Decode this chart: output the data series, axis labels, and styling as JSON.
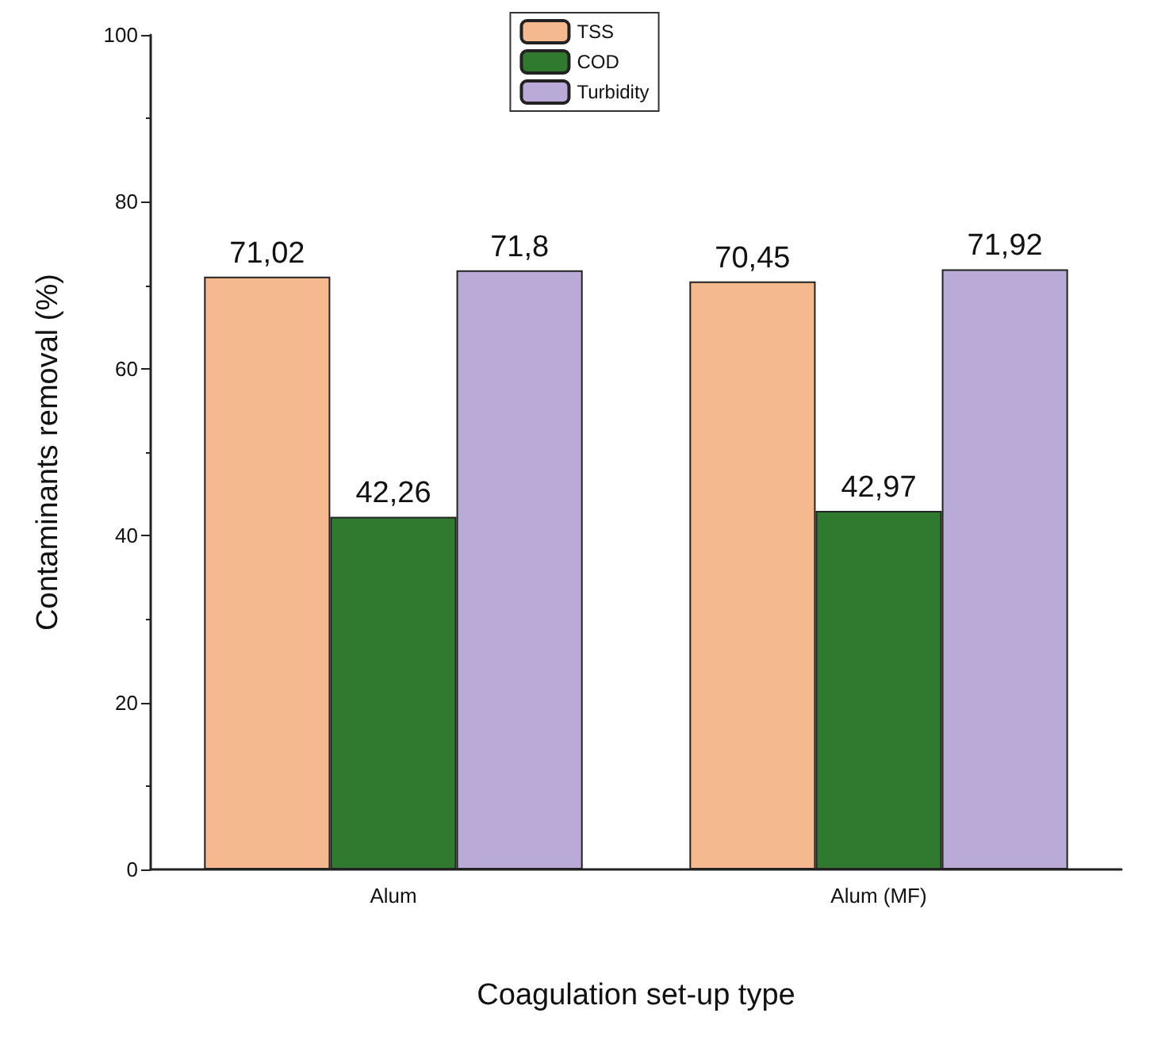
{
  "chart_data": {
    "type": "bar",
    "xlabel": "Coagulation set-up type",
    "ylabel": "Contaminants removal (%)",
    "categories": [
      "Alum",
      "Alum (MF)"
    ],
    "series": [
      {
        "name": "TSS",
        "color": "#f4b98f",
        "values": [
          71.02,
          70.45
        ],
        "value_labels": [
          "71,02",
          "70,45"
        ]
      },
      {
        "name": "COD",
        "color": "#2f7a2f",
        "values": [
          42.26,
          42.97
        ],
        "value_labels": [
          "42,26",
          "42,97"
        ]
      },
      {
        "name": "Turbidity",
        "color": "#b9aad8",
        "values": [
          71.8,
          71.92
        ],
        "value_labels": [
          "71,8",
          "71,92"
        ]
      }
    ],
    "ylim": [
      0,
      100
    ],
    "yticks": [
      0,
      20,
      40,
      60,
      80,
      100
    ],
    "grid": false,
    "legend": "top"
  }
}
